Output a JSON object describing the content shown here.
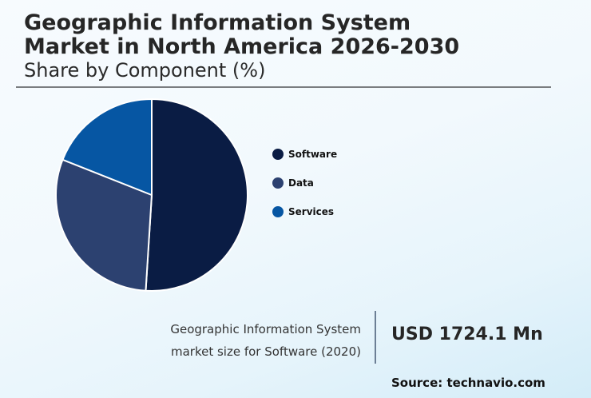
{
  "header": {
    "title_line1": "Geographic Information System",
    "title_line2": "Market in North America 2026-2030",
    "subtitle": "Share by Component (%)"
  },
  "chart_data": {
    "type": "pie",
    "title": "Geographic Information System Market in North America 2026-2030",
    "subtitle": "Share by Component (%)",
    "categories": [
      "Software",
      "Data",
      "Services"
    ],
    "values": [
      51,
      30,
      19
    ],
    "colors": [
      "#0a1c44",
      "#2c4170",
      "#0656a3"
    ],
    "start_angle": "12 o'clock, clockwise",
    "legend_position": "right"
  },
  "legend": {
    "items": [
      {
        "label": "Software",
        "color": "#0a1c44"
      },
      {
        "label": "Data",
        "color": "#2c4170"
      },
      {
        "label": "Services",
        "color": "#0656a3"
      }
    ]
  },
  "kpi": {
    "label_line1": "Geographic Information System",
    "label_line2": "market size for Software (2020)",
    "value": "USD 1724.1 Mn"
  },
  "source": "Source: technavio.com"
}
